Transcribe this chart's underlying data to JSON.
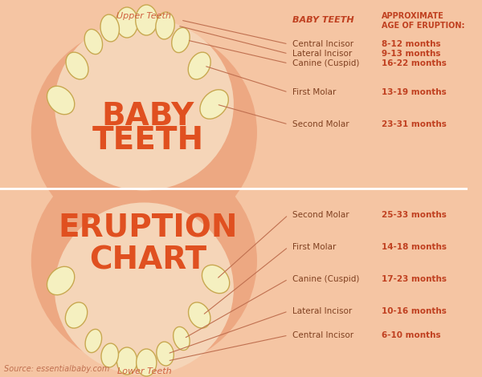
{
  "bg_color": "#F5C5A3",
  "bg_color_light": "#F8D5BB",
  "divider_color": "#FFFFFF",
  "tooth_fill": "#F5F0C0",
  "tooth_stroke": "#C8A850",
  "arc_fill": "#EDA882",
  "center_fill": "#F5D5B8",
  "title_lines": [
    "BABY",
    "TEETH",
    "ERUPTION",
    "CHART"
  ],
  "title_color": "#E05020",
  "title_fontsize": 28,
  "upper_label": "Upper Teeth",
  "lower_label": "Lower Teeth",
  "label_color": "#D06040",
  "header_baby_teeth": "BABY TEETH",
  "header_age": "APPROXIMATE\nAGE OF ERUPTION:",
  "header_color": "#C04020",
  "line_color": "#C07050",
  "upper_teeth": [
    {
      "name": "Central Incisor",
      "age": "8-12 months"
    },
    {
      "name": "Lateral Incisor",
      "age": "9-13 months"
    },
    {
      "name": "Canine (Cuspid)",
      "age": "16-22 months"
    },
    {
      "name": "First Molar",
      "age": "13-19 months"
    },
    {
      "name": "Second Molar",
      "age": "23-31 months"
    }
  ],
  "lower_teeth": [
    {
      "name": "Second Molar",
      "age": "25-33 months"
    },
    {
      "name": "First Molar",
      "age": "14-18 months"
    },
    {
      "name": "Canine (Cuspid)",
      "age": "17-23 months"
    },
    {
      "name": "Lateral Incisor",
      "age": "10-16 months"
    },
    {
      "name": "Central Incisor",
      "age": "6-10 months"
    }
  ],
  "source_text": "Source: essentialbaby.com",
  "source_color": "#C07050",
  "name_fontsize": 7.5,
  "age_fontsize": 7.5,
  "name_color": "#804020",
  "age_color": "#C04020"
}
